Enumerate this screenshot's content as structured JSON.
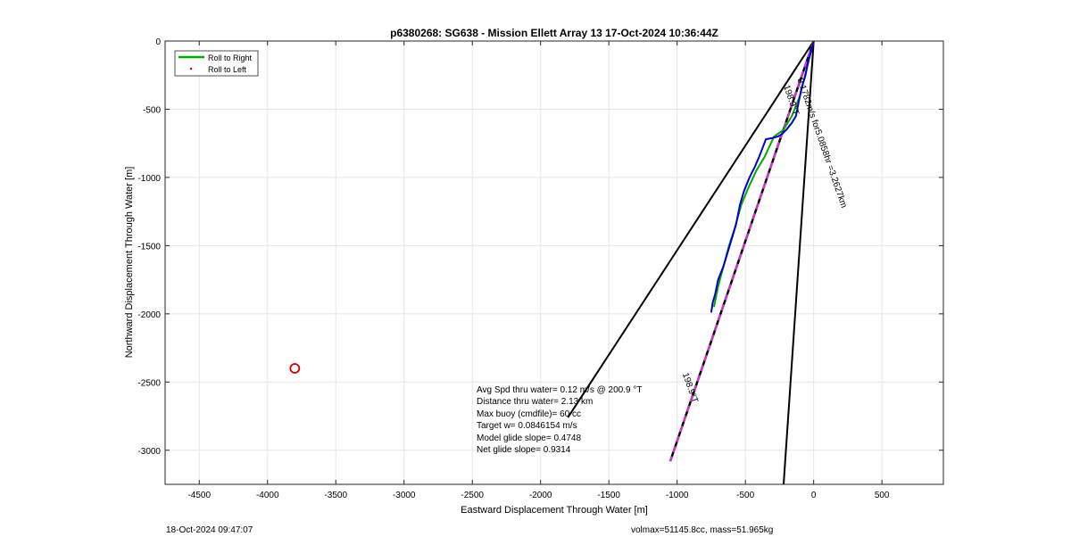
{
  "chart_data": {
    "type": "line",
    "title": "p6380268: SG638 - Mission Ellett Array 13 17-Oct-2024 10:36:44Z",
    "xlabel": "Eastward Displacement Through Water [m]",
    "ylabel": "Northward Displacement Through Water [m]",
    "xlim": [
      -4750,
      950
    ],
    "ylim": [
      -3250,
      0
    ],
    "xticks": [
      -4500,
      -4000,
      -3500,
      -3000,
      -2500,
      -2000,
      -1500,
      -1000,
      -500,
      0,
      500
    ],
    "yticks": [
      0,
      -500,
      -1000,
      -1500,
      -2000,
      -2500,
      -3000
    ],
    "grid": true,
    "legend_position": "top-left",
    "legend": [
      {
        "label": "Roll to Right",
        "color": "#00aa00",
        "style": "line"
      },
      {
        "label": "Roll to Left",
        "color": "#cc0000",
        "style": "dot"
      }
    ],
    "track_blue": {
      "color": "#0000cc",
      "x": [
        0,
        -20,
        -40,
        -60,
        -90,
        -110,
        -130,
        -160,
        -200,
        -230,
        -260,
        -300,
        -350,
        -380,
        -400,
        -430,
        -470,
        -510,
        -540,
        -570,
        -600,
        -630,
        -660,
        -700,
        -720,
        -740,
        -750
      ],
      "y": [
        0,
        -80,
        -150,
        -250,
        -350,
        -450,
        -550,
        -600,
        -650,
        -680,
        -700,
        -710,
        -720,
        -800,
        -850,
        -920,
        -1000,
        -1100,
        -1200,
        -1350,
        -1450,
        -1550,
        -1650,
        -1750,
        -1850,
        -1920,
        -1990
      ]
    },
    "track_green": {
      "color": "#00aa00",
      "x": [
        0,
        -50,
        -100,
        -160,
        -220,
        -290,
        -360,
        -420,
        -480,
        -530,
        -580,
        -620,
        -660,
        -700,
        -730
      ],
      "y": [
        0,
        -200,
        -400,
        -550,
        -650,
        -700,
        -850,
        -950,
        -1080,
        -1200,
        -1380,
        -1500,
        -1650,
        -1800,
        -1950
      ]
    },
    "heading_line": {
      "color": "#cc33cc",
      "x": [
        0,
        -1050
      ],
      "y": [
        0,
        -3080
      ]
    },
    "black_lines": [
      {
        "x": [
          0,
          -1800
        ],
        "y": [
          0,
          -2760
        ]
      },
      {
        "x": [
          0,
          -220
        ],
        "y": [
          0,
          -3250
        ]
      }
    ],
    "target_marker": {
      "x": -3800,
      "y": -2400,
      "color": "#cc0000"
    },
    "annotations": [
      {
        "text": "198.9°T",
        "x": -220,
        "y": -330,
        "angle": 71
      },
      {
        "text": "0.1782m/s for5.0858hr =3.2627km",
        "x": -120,
        "y": -280,
        "angle": 71
      },
      {
        "text": "198.9°T",
        "x": -960,
        "y": -2440,
        "angle": 71
      }
    ],
    "stats": [
      "Avg Spd thru water=  0.12 m/s @ 200.9 °T",
      "Distance thru water=  2.13 km",
      "Max buoy (cmdfile)= 60 cc",
      "Target w= 0.0846154 m/s",
      "Model glide slope= 0.4748",
      "Net glide slope= 0.9314"
    ]
  },
  "footer": {
    "left": "18-Oct-2024 09:47:07",
    "right": "volmax=51145.8cc, mass=51.965kg"
  }
}
